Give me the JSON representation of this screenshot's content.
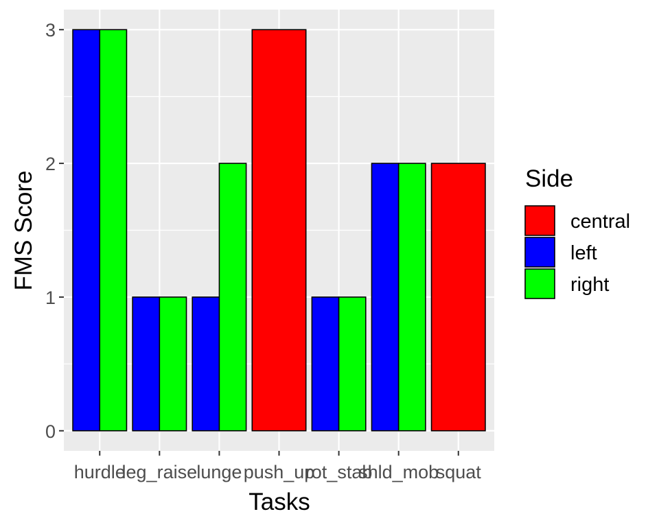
{
  "chart_data": {
    "type": "bar",
    "title": "",
    "xlabel": "Tasks",
    "ylabel": "FMS Score",
    "ylim": [
      -0.15,
      3.15
    ],
    "yticks": [
      0,
      1,
      2,
      3
    ],
    "grid": true,
    "categories": [
      "hurdle",
      "leg_raise",
      "lunge",
      "push_up",
      "rot_stab",
      "shld_mob",
      "squat"
    ],
    "legend": {
      "title": "Side",
      "placement": "right",
      "entries": [
        "central",
        "left",
        "right"
      ]
    },
    "series": [
      {
        "name": "central",
        "color": "#ff0000",
        "values": [
          null,
          null,
          null,
          3,
          null,
          null,
          2
        ]
      },
      {
        "name": "left",
        "color": "#0000ff",
        "values": [
          3,
          1,
          1,
          null,
          1,
          2,
          null
        ]
      },
      {
        "name": "right",
        "color": "#00ff00",
        "values": [
          3,
          1,
          2,
          null,
          1,
          2,
          null
        ]
      }
    ]
  }
}
